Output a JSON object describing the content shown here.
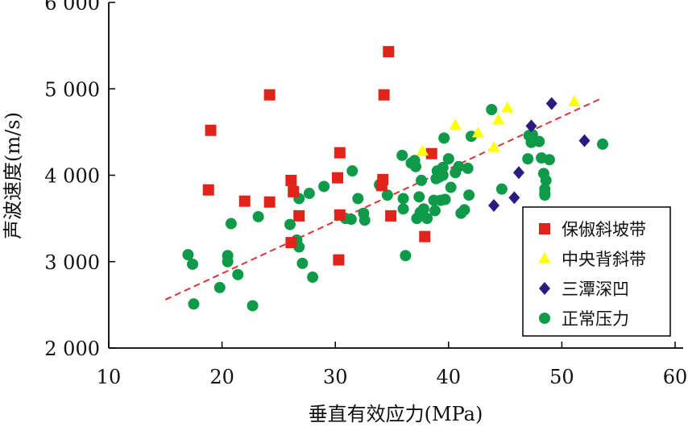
{
  "chart_data": {
    "type": "scatter",
    "xlabel": "垂直有效应力(MPa)",
    "ylabel": "声波速度(m/s)",
    "xlim": [
      10,
      60
    ],
    "ylim": [
      2000,
      6000
    ],
    "xticks": [
      "10",
      "20",
      "30",
      "40",
      "50",
      "60"
    ],
    "yticks": [
      "2 000",
      "3 000",
      "4 000",
      "5 000",
      "6 000"
    ],
    "xtick_values": [
      10,
      20,
      30,
      40,
      50,
      60
    ],
    "ytick_values": [
      2000,
      3000,
      4000,
      5000,
      6000
    ],
    "grid": false,
    "legend_position": "bottom-right",
    "trendline": {
      "style": "dashed",
      "color": "#dd3333",
      "x": [
        15,
        53.5
      ],
      "y": [
        2560,
        4890
      ]
    },
    "series": [
      {
        "name": "保俶斜坡带",
        "marker": "square",
        "color": "#e2231a",
        "points": [
          [
            18.8,
            3830
          ],
          [
            19.0,
            4520
          ],
          [
            22.0,
            3700
          ],
          [
            24.2,
            4930
          ],
          [
            24.2,
            3690
          ],
          [
            26.1,
            3940
          ],
          [
            26.3,
            3810
          ],
          [
            26.1,
            3220
          ],
          [
            26.8,
            3530
          ],
          [
            30.2,
            3970
          ],
          [
            30.4,
            4260
          ],
          [
            30.4,
            3540
          ],
          [
            30.3,
            3020
          ],
          [
            34.1,
            3880
          ],
          [
            34.2,
            3950
          ],
          [
            34.3,
            4930
          ],
          [
            34.7,
            5430
          ],
          [
            34.9,
            3530
          ],
          [
            37.9,
            3290
          ],
          [
            38.5,
            4250
          ]
        ]
      },
      {
        "name": "中央背斜带",
        "marker": "triangle",
        "color": "#ffff00",
        "points": [
          [
            37.7,
            4280
          ],
          [
            40.6,
            4580
          ],
          [
            42.6,
            4490
          ],
          [
            44.0,
            4320
          ],
          [
            44.4,
            4640
          ],
          [
            45.2,
            4780
          ],
          [
            51.1,
            4850
          ]
        ]
      },
      {
        "name": "三潭深凹",
        "marker": "diamond",
        "color": "#2b1b80",
        "points": [
          [
            44.0,
            3650
          ],
          [
            45.8,
            3740
          ],
          [
            46.2,
            4030
          ],
          [
            47.3,
            4570
          ],
          [
            49.1,
            4830
          ],
          [
            52.0,
            4400
          ]
        ]
      },
      {
        "name": "正常压力",
        "marker": "circle",
        "color": "#0e9a48",
        "points": [
          [
            17.0,
            3080
          ],
          [
            17.4,
            2970
          ],
          [
            17.5,
            2510
          ],
          [
            19.8,
            2700
          ],
          [
            20.5,
            3070
          ],
          [
            20.5,
            3000
          ],
          [
            20.8,
            3440
          ],
          [
            21.4,
            2850
          ],
          [
            22.7,
            2490
          ],
          [
            23.2,
            3520
          ],
          [
            26.0,
            3430
          ],
          [
            26.6,
            3250
          ],
          [
            26.8,
            3170
          ],
          [
            26.8,
            3730
          ],
          [
            27.1,
            2980
          ],
          [
            27.7,
            3790
          ],
          [
            28.0,
            2820
          ],
          [
            29.0,
            3870
          ],
          [
            30.9,
            3500
          ],
          [
            31.4,
            3490
          ],
          [
            31.5,
            4050
          ],
          [
            32.0,
            3730
          ],
          [
            32.5,
            3560
          ],
          [
            32.6,
            3480
          ],
          [
            33.9,
            3890
          ],
          [
            34.6,
            3770
          ],
          [
            35.9,
            4230
          ],
          [
            36.0,
            3730
          ],
          [
            36.0,
            3610
          ],
          [
            36.2,
            3070
          ],
          [
            36.7,
            4140
          ],
          [
            37.0,
            4170
          ],
          [
            37.1,
            4100
          ],
          [
            37.4,
            3750
          ],
          [
            37.2,
            3500
          ],
          [
            37.5,
            3570
          ],
          [
            37.6,
            3940
          ],
          [
            37.8,
            3610
          ],
          [
            38.1,
            3500
          ],
          [
            38.7,
            3710
          ],
          [
            38.8,
            3590
          ],
          [
            38.9,
            3960
          ],
          [
            39.0,
            4050
          ],
          [
            39.2,
            3980
          ],
          [
            39.3,
            3710
          ],
          [
            39.5,
            4090
          ],
          [
            39.5,
            4000
          ],
          [
            39.6,
            4430
          ],
          [
            39.7,
            3720
          ],
          [
            40.0,
            4190
          ],
          [
            40.2,
            3860
          ],
          [
            40.6,
            4030
          ],
          [
            40.9,
            4100
          ],
          [
            41.1,
            3560
          ],
          [
            41.4,
            3600
          ],
          [
            41.7,
            4080
          ],
          [
            41.8,
            3770
          ],
          [
            42.0,
            4450
          ],
          [
            43.8,
            4760
          ],
          [
            44.7,
            3840
          ],
          [
            47.0,
            4190
          ],
          [
            47.1,
            4460
          ],
          [
            47.3,
            4380
          ],
          [
            47.4,
            4470
          ],
          [
            48.0,
            4390
          ],
          [
            48.2,
            4200
          ],
          [
            48.4,
            4020
          ],
          [
            48.6,
            3940
          ],
          [
            48.5,
            3790
          ],
          [
            48.5,
            3770
          ],
          [
            48.5,
            3840
          ],
          [
            48.9,
            4180
          ],
          [
            53.6,
            4360
          ]
        ]
      }
    ]
  }
}
